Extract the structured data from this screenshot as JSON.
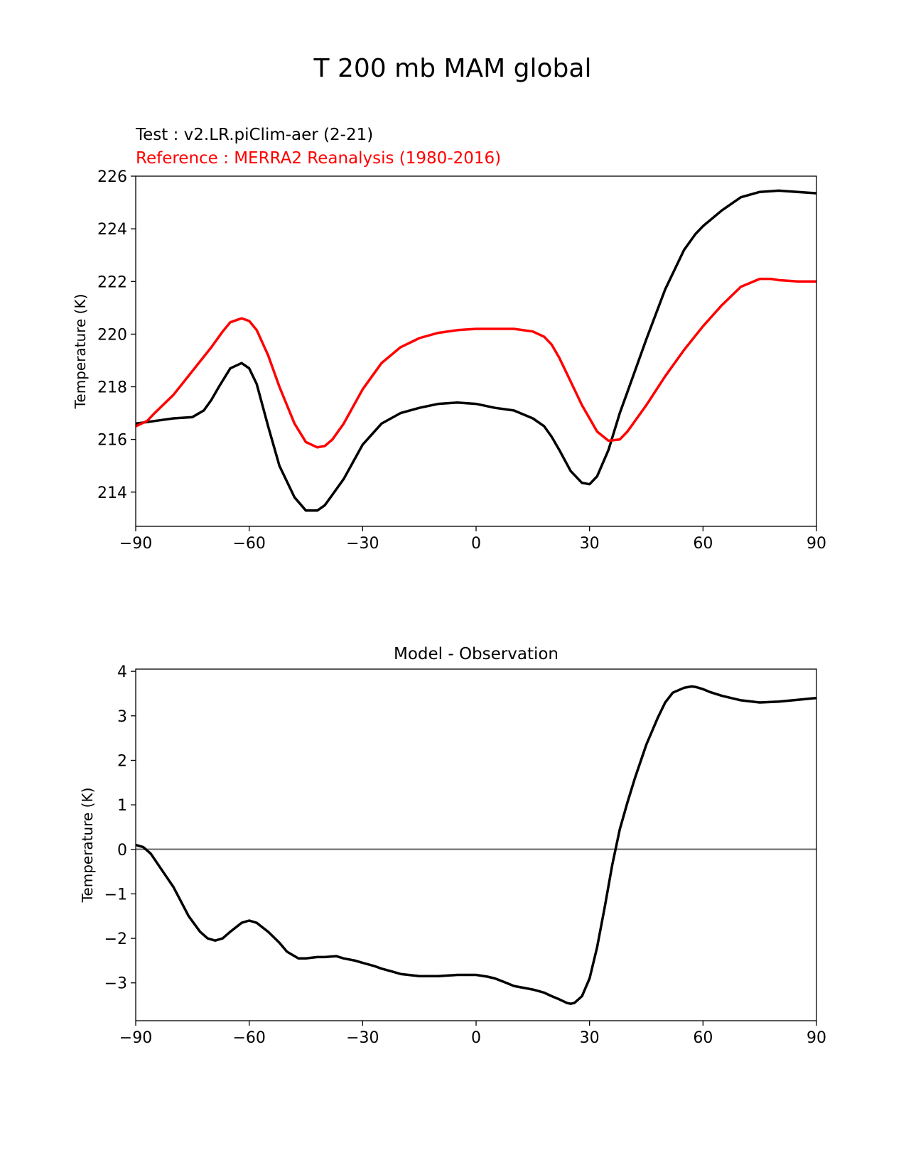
{
  "figure": {
    "title": "T 200 mb MAM global"
  },
  "chart_data": [
    {
      "type": "line",
      "test_label": "Test : v2.LR.piClim-aer (2-21)",
      "reference_label": "Reference : MERRA2 Reanalysis (1980-2016)",
      "title": "",
      "xlabel": "",
      "ylabel": "Temperature (K)",
      "xlim": [
        -90,
        90
      ],
      "ylim": [
        212.7,
        226
      ],
      "x_ticks": [
        -90,
        -60,
        -30,
        0,
        30,
        60,
        90
      ],
      "x_tick_labels": [
        "−90",
        "−60",
        "−30",
        "0",
        "30",
        "60",
        "90"
      ],
      "y_ticks": [
        214,
        216,
        218,
        220,
        222,
        224,
        226
      ],
      "y_tick_labels": [
        "214",
        "216",
        "218",
        "220",
        "222",
        "224",
        "226"
      ],
      "grid": false,
      "series": [
        {
          "name": "Test : v2.LR.piClim-aer (2-21)",
          "color": "#000000",
          "x": [
            -90,
            -85,
            -80,
            -75,
            -72,
            -70,
            -68,
            -65,
            -62,
            -60,
            -58,
            -55,
            -52,
            -48,
            -45,
            -42,
            -40,
            -38,
            -35,
            -30,
            -25,
            -20,
            -15,
            -10,
            -5,
            0,
            5,
            10,
            15,
            18,
            20,
            22,
            25,
            28,
            30,
            32,
            35,
            38,
            40,
            45,
            50,
            55,
            58,
            60,
            65,
            70,
            75,
            80,
            85,
            90
          ],
          "y": [
            216.6,
            216.7,
            216.8,
            216.85,
            217.1,
            217.5,
            218.0,
            218.7,
            218.9,
            218.7,
            218.1,
            216.5,
            215.0,
            213.8,
            213.3,
            213.3,
            213.5,
            213.9,
            214.5,
            215.8,
            216.6,
            217.0,
            217.2,
            217.35,
            217.4,
            217.35,
            217.2,
            217.1,
            216.8,
            216.5,
            216.1,
            215.6,
            214.8,
            214.35,
            214.3,
            214.6,
            215.6,
            217.0,
            217.8,
            219.8,
            221.7,
            223.2,
            223.8,
            224.1,
            224.7,
            225.2,
            225.4,
            225.45,
            225.4,
            225.35
          ]
        },
        {
          "name": "Reference : MERRA2 Reanalysis (1980-2016)",
          "color": "#ff0000",
          "x": [
            -90,
            -87,
            -85,
            -80,
            -75,
            -70,
            -67,
            -65,
            -62,
            -60,
            -58,
            -55,
            -52,
            -48,
            -45,
            -42,
            -40,
            -38,
            -35,
            -30,
            -25,
            -20,
            -15,
            -10,
            -5,
            0,
            5,
            10,
            15,
            18,
            20,
            22,
            25,
            28,
            30,
            32,
            35,
            38,
            40,
            45,
            50,
            55,
            60,
            65,
            70,
            75,
            78,
            80,
            85,
            90
          ],
          "y": [
            216.5,
            216.7,
            217.0,
            217.7,
            218.6,
            219.5,
            220.1,
            220.45,
            220.6,
            220.5,
            220.15,
            219.2,
            218.0,
            216.6,
            215.9,
            215.7,
            215.75,
            216.0,
            216.6,
            217.9,
            218.9,
            219.5,
            219.85,
            220.05,
            220.15,
            220.2,
            220.2,
            220.2,
            220.1,
            219.9,
            219.6,
            219.1,
            218.2,
            217.3,
            216.8,
            216.3,
            215.95,
            216.0,
            216.3,
            217.3,
            218.4,
            219.4,
            220.3,
            221.1,
            221.8,
            222.1,
            222.1,
            222.05,
            222.0,
            222.0
          ]
        }
      ]
    },
    {
      "type": "line",
      "title": "Model - Observation",
      "xlabel": "",
      "ylabel": "Temperature (K)",
      "xlim": [
        -90,
        90
      ],
      "ylim": [
        -3.85,
        4.05
      ],
      "x_ticks": [
        -90,
        -60,
        -30,
        0,
        30,
        60,
        90
      ],
      "x_tick_labels": [
        "−90",
        "−60",
        "−30",
        "0",
        "30",
        "60",
        "90"
      ],
      "y_ticks": [
        -3,
        -2,
        -1,
        0,
        1,
        2,
        3,
        4
      ],
      "y_tick_labels": [
        "−3",
        "−2",
        "−1",
        "0",
        "1",
        "2",
        "3",
        "4"
      ],
      "grid": false,
      "zero_line_color": "#808080",
      "series": [
        {
          "color": "#000000",
          "x": [
            -90,
            -88,
            -86,
            -84,
            -80,
            -76,
            -73,
            -71,
            -69,
            -67,
            -65,
            -62,
            -60,
            -58,
            -55,
            -52,
            -50,
            -47,
            -45,
            -42,
            -40,
            -37,
            -35,
            -32,
            -30,
            -27,
            -25,
            -22,
            -20,
            -15,
            -10,
            -5,
            0,
            3,
            5,
            8,
            10,
            15,
            18,
            20,
            22,
            24,
            25,
            26,
            28,
            30,
            32,
            34,
            36,
            38,
            40,
            42,
            45,
            48,
            50,
            52,
            55,
            57,
            58,
            60,
            62,
            65,
            70,
            75,
            80,
            85,
            90
          ],
          "y": [
            0.1,
            0.05,
            -0.1,
            -0.35,
            -0.85,
            -1.5,
            -1.85,
            -2.0,
            -2.05,
            -2.0,
            -1.85,
            -1.65,
            -1.6,
            -1.65,
            -1.85,
            -2.1,
            -2.3,
            -2.45,
            -2.45,
            -2.42,
            -2.42,
            -2.4,
            -2.45,
            -2.5,
            -2.55,
            -2.62,
            -2.68,
            -2.75,
            -2.8,
            -2.85,
            -2.85,
            -2.82,
            -2.82,
            -2.86,
            -2.9,
            -3.0,
            -3.07,
            -3.15,
            -3.22,
            -3.3,
            -3.37,
            -3.45,
            -3.47,
            -3.45,
            -3.3,
            -2.9,
            -2.2,
            -1.3,
            -0.35,
            0.45,
            1.05,
            1.6,
            2.35,
            2.95,
            3.3,
            3.52,
            3.63,
            3.66,
            3.65,
            3.6,
            3.53,
            3.45,
            3.35,
            3.3,
            3.32,
            3.36,
            3.4
          ]
        }
      ]
    }
  ]
}
